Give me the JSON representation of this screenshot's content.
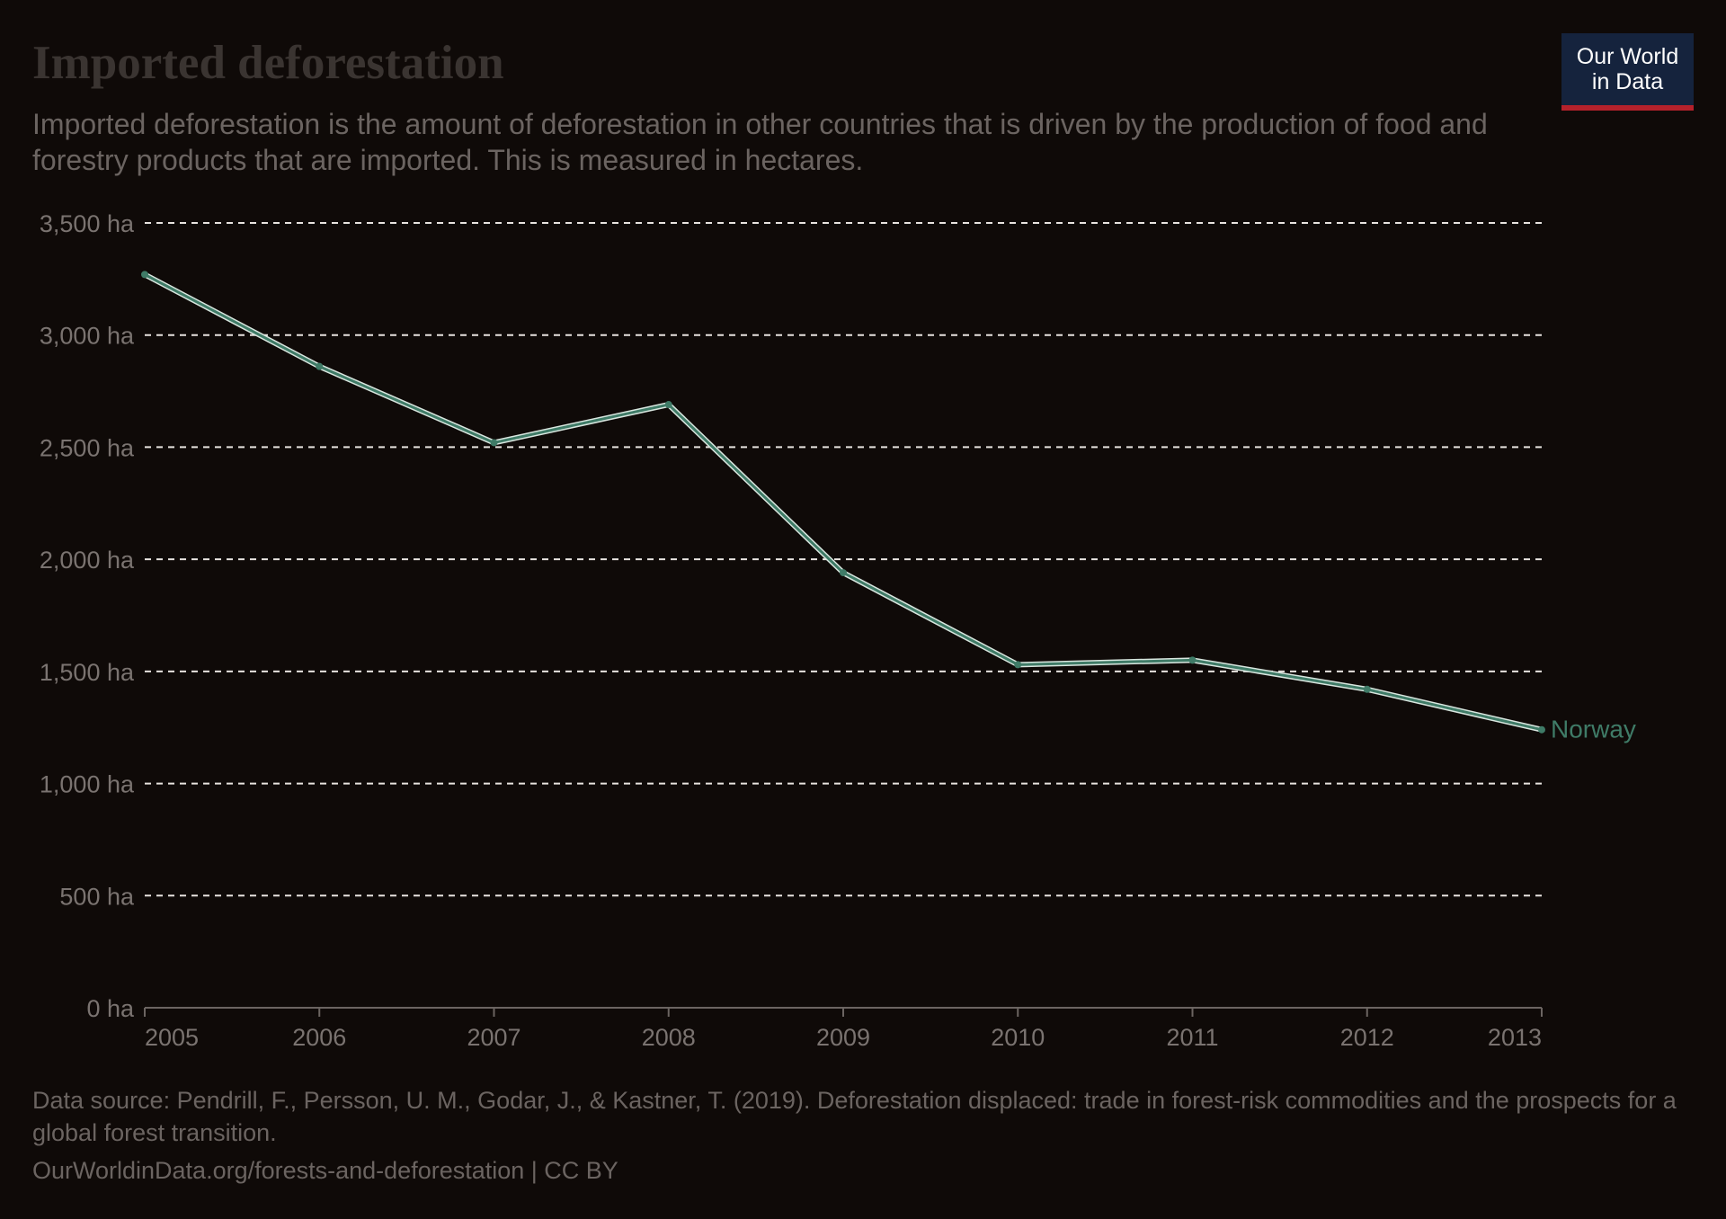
{
  "header": {
    "title": "Imported deforestation",
    "subtitle": "Imported deforestation is the amount of deforestation in other countries that is driven by the production of food and forestry products that are imported. This is measured in hectares."
  },
  "logo": {
    "line1": "Our World",
    "line2": "in Data"
  },
  "footer": {
    "source": "Data source: Pendrill, F., Persson, U. M., Godar, J., & Kastner, T. (2019). Deforestation displaced: trade in forest-risk commodities and the prospects for a global forest transition.",
    "url": "OurWorldinData.org/forests-and-deforestation | CC BY"
  },
  "colors": {
    "background": "#0f0a08",
    "series": "#3f7b67",
    "grid": "#e8e3df",
    "axis": "#6b6461",
    "tick_text": "#7a7370"
  },
  "chart_data": {
    "type": "line",
    "title": "Imported deforestation",
    "x": [
      2005,
      2006,
      2007,
      2008,
      2009,
      2010,
      2011,
      2012,
      2013
    ],
    "series": [
      {
        "name": "Norway",
        "values": [
          3270,
          2860,
          2520,
          2690,
          1940,
          1530,
          1550,
          1420,
          1240
        ]
      }
    ],
    "xlim": [
      2005,
      2013
    ],
    "ylim": [
      0,
      3500
    ],
    "yticks": [
      0,
      500,
      1000,
      1500,
      2000,
      2500,
      3000,
      3500
    ],
    "ytick_labels": [
      "0 ha",
      "500 ha",
      "1,000 ha",
      "1,500 ha",
      "2,000 ha",
      "2,500 ha",
      "3,000 ha",
      "3,500 ha"
    ],
    "xtick_labels": [
      "2005",
      "2006",
      "2007",
      "2008",
      "2009",
      "2010",
      "2011",
      "2012",
      "2013"
    ],
    "grid": "horizontal dashed",
    "legend": "series label at line end"
  }
}
